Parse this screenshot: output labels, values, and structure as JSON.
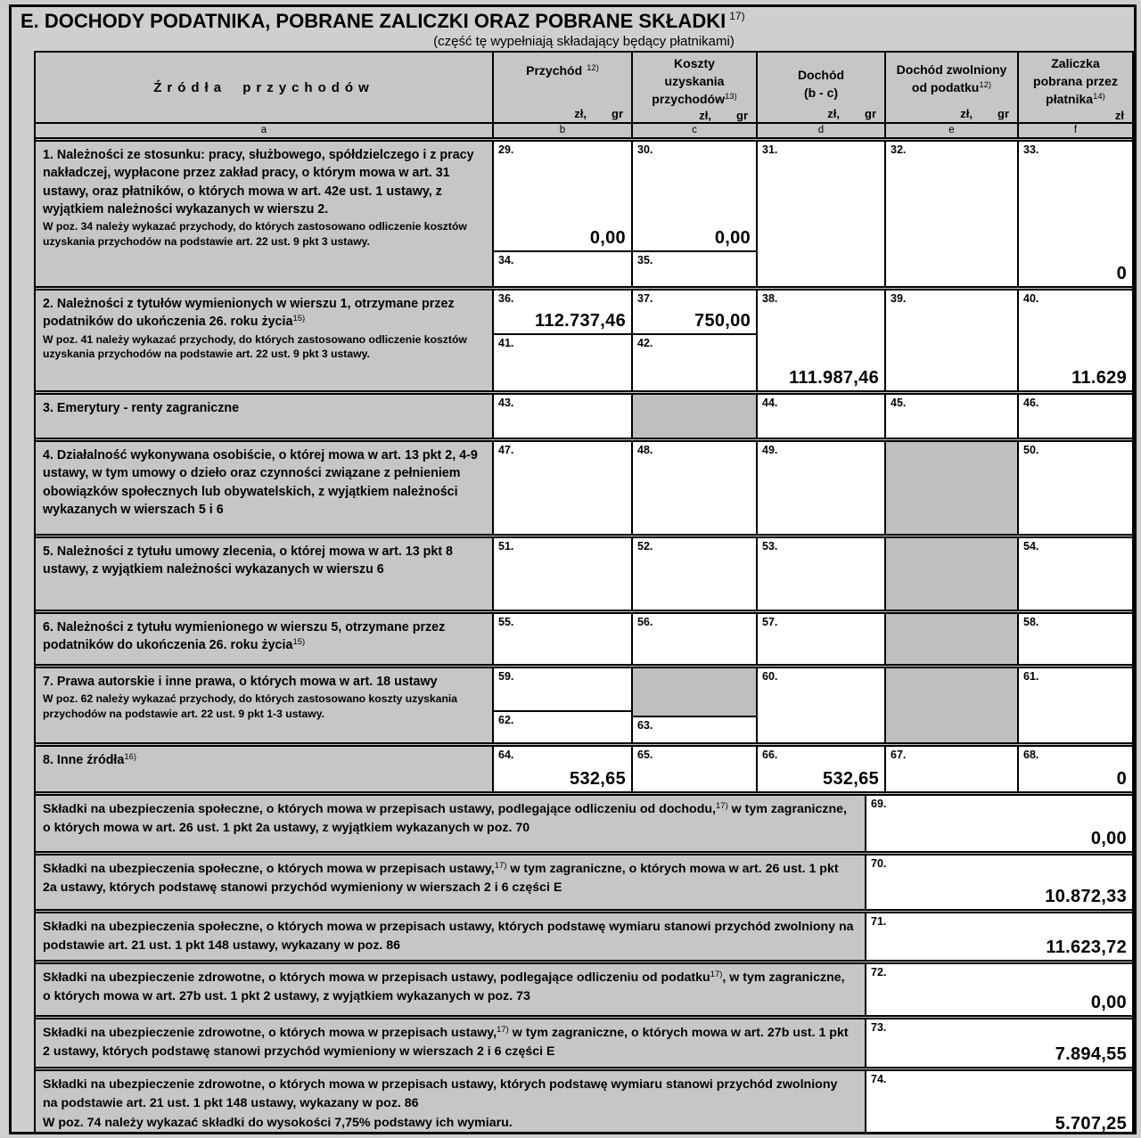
{
  "section": {
    "title": "E. DOCHODY PODATNIKA, POBRANE ZALICZKI ORAZ POBRANE SKŁADKI",
    "title_sup": "17)",
    "subtitle": "(część tę wypełniają składający będący płatnikami)"
  },
  "colors": {
    "page_bg": "#cfcfcf",
    "header_gray": "#c6c6c6",
    "disabled_cell_gray": "#bfbfbf",
    "field_white": "#ffffff",
    "border_black": "#000000"
  },
  "header": {
    "col_a": {
      "label": "Źródła przychodów",
      "letter": "a"
    },
    "col_b": {
      "line1": "Przychód",
      "sup": "12)",
      "unit_zl": "zł,",
      "unit_gr": "gr",
      "letter": "b"
    },
    "col_c": {
      "line1": "Koszty",
      "line2": "uzyskania",
      "line3": "przychodów",
      "sup": "13)",
      "unit_zl": "zł,",
      "unit_gr": "gr",
      "letter": "c"
    },
    "col_d": {
      "line1": "Dochód",
      "line2": "(b - c)",
      "unit_zl": "zł,",
      "unit_gr": "gr",
      "letter": "d"
    },
    "col_e": {
      "line1": "Dochód zwolniony",
      "line2": "od podatku",
      "sup": "12)",
      "unit_zl": "zł,",
      "unit_gr": "gr",
      "letter": "e"
    },
    "col_f": {
      "line1": "Zaliczka",
      "line2": "pobrana przez",
      "line3": "płatnika",
      "sup": "14)",
      "unit_zl": "zł",
      "letter": "f"
    }
  },
  "rows": {
    "r1": {
      "title": "1. Należności ze stosunku: pracy, służbowego, spółdzielczego i z pracy nakładczej, wypłacone przez zakład pracy, o którym mowa w art. 31 ustawy, oraz płatników, o których mowa w art. 42e ust. 1 ustawy, z wyjątkiem należności wykazanych w wierszu 2.",
      "note": "W poz. 34 należy wykazać przychody, do których zastosowano odliczenie kosztów uzyskania przychodów na podstawie art. 22 ust. 9 pkt 3 ustawy.",
      "f29": {
        "no": "29.",
        "value": "0,00"
      },
      "f30": {
        "no": "30.",
        "value": "0,00"
      },
      "f31": {
        "no": "31.",
        "value": ""
      },
      "f32": {
        "no": "32.",
        "value": ""
      },
      "f33": {
        "no": "33.",
        "value": "0"
      },
      "f34": {
        "no": "34.",
        "value": ""
      },
      "f35": {
        "no": "35.",
        "value": ""
      }
    },
    "r2": {
      "title": "2. Należności z tytułów wymienionych w wierszu 1, otrzymane przez podatników do ukończenia 26. roku życia",
      "title_sup": "15)",
      "note": "W poz. 41 należy wykazać przychody, do których zastosowano odliczenie kosztów uzyskania przychodów na podstawie art. 22 ust. 9 pkt 3 ustawy.",
      "f36": {
        "no": "36.",
        "value": "112.737,46"
      },
      "f37": {
        "no": "37.",
        "value": "750,00"
      },
      "f38": {
        "no": "38.",
        "value": "111.987,46"
      },
      "f39": {
        "no": "39.",
        "value": ""
      },
      "f40": {
        "no": "40.",
        "value": "11.629"
      },
      "f41": {
        "no": "41.",
        "value": ""
      },
      "f42": {
        "no": "42.",
        "value": ""
      }
    },
    "r3": {
      "title": "3. Emerytury - renty zagraniczne",
      "f43": {
        "no": "43.",
        "value": ""
      },
      "f44": {
        "no": "44.",
        "value": ""
      },
      "f45": {
        "no": "45.",
        "value": ""
      },
      "f46": {
        "no": "46.",
        "value": ""
      }
    },
    "r4": {
      "title": "4. Działalność wykonywana osobiście, o której mowa w art. 13 pkt 2, 4-9 ustawy, w tym umowy o dzieło oraz czynności związane z pełnieniem obowiązków społecznych lub obywatelskich, z wyjątkiem należności wykazanych w wierszach 5 i 6",
      "f47": {
        "no": "47.",
        "value": ""
      },
      "f48": {
        "no": "48.",
        "value": ""
      },
      "f49": {
        "no": "49.",
        "value": ""
      },
      "f50": {
        "no": "50.",
        "value": ""
      }
    },
    "r5": {
      "title": "5. Należności z tytułu umowy zlecenia, o której mowa w art. 13 pkt 8 ustawy, z wyjątkiem należności wykazanych w wierszu 6",
      "f51": {
        "no": "51.",
        "value": ""
      },
      "f52": {
        "no": "52.",
        "value": ""
      },
      "f53": {
        "no": "53.",
        "value": ""
      },
      "f54": {
        "no": "54.",
        "value": ""
      }
    },
    "r6": {
      "title": "6. Należności z tytułu wymienionego w wierszu 5, otrzymane przez podatników do ukończenia 26. roku życia",
      "title_sup": "15)",
      "f55": {
        "no": "55.",
        "value": ""
      },
      "f56": {
        "no": "56.",
        "value": ""
      },
      "f57": {
        "no": "57.",
        "value": ""
      },
      "f58": {
        "no": "58.",
        "value": ""
      }
    },
    "r7": {
      "title": "7. Prawa autorskie i inne prawa, o których mowa w art. 18 ustawy",
      "note": "W poz. 62 należy wykazać przychody, do których zastosowano koszty uzyskania przychodów na podstawie art. 22 ust. 9 pkt 1-3 ustawy.",
      "f59": {
        "no": "59.",
        "value": ""
      },
      "f60": {
        "no": "60.",
        "value": ""
      },
      "f61": {
        "no": "61.",
        "value": ""
      },
      "f62": {
        "no": "62.",
        "value": ""
      },
      "f63": {
        "no": "63.",
        "value": ""
      }
    },
    "r8": {
      "title": "8. Inne źródła",
      "title_sup": "16)",
      "f64": {
        "no": "64.",
        "value": "532,65"
      },
      "f65": {
        "no": "65.",
        "value": ""
      },
      "f66": {
        "no": "66.",
        "value": "532,65"
      },
      "f67": {
        "no": "67.",
        "value": ""
      },
      "f68": {
        "no": "68.",
        "value": "0"
      }
    }
  },
  "contrib": {
    "c69": {
      "text1": "Składki na ubezpieczenia społeczne, o których mowa w przepisach ustawy, podlegające odliczeniu od dochodu,",
      "sup": "17)",
      "text2": " w tym zagraniczne, o których mowa w art. 26 ust. 1 pkt 2a ustawy, z wyjątkiem wykazanych w poz. 70",
      "no": "69.",
      "value": "0,00"
    },
    "c70": {
      "text1": "Składki na ubezpieczenia społeczne, o których mowa w przepisach ustawy,",
      "sup": "17)",
      "text2": " w tym zagraniczne, o których mowa w art. 26 ust. 1 pkt 2a ustawy, których podstawę stanowi przychód wymieniony w wierszach 2 i 6 części E",
      "no": "70.",
      "value": "10.872,33"
    },
    "c71": {
      "text1": "Składki na ubezpieczenia społeczne, o których mowa w przepisach ustawy, których podstawę wymiaru stanowi przychód zwolniony na podstawie art. 21 ust. 1 pkt 148 ustawy, wykazany w poz. 86",
      "no": "71.",
      "value": "11.623,72"
    },
    "c72": {
      "text1": "Składki na ubezpieczenie zdrowotne, o których mowa w przepisach ustawy, podlegające odliczeniu od podatku",
      "sup": "17)",
      "text2": ", w tym zagraniczne, o których mowa w art. 27b ust. 1 pkt 2 ustawy, z wyjątkiem wykazanych w poz. 73",
      "no": "72.",
      "value": "0,00"
    },
    "c73": {
      "text1": "Składki na ubezpieczenie zdrowotne, o których mowa w przepisach ustawy,",
      "sup": "17)",
      "text2": " w tym zagraniczne, o których mowa w art. 27b ust. 1 pkt 2 ustawy, których podstawę stanowi przychód wymieniony w wierszach 2 i 6 części E",
      "no": "73.",
      "value": "7.894,55"
    },
    "c74": {
      "text1": "Składki na ubezpieczenie zdrowotne, o których mowa w przepisach ustawy, których podstawę wymiaru stanowi przychód zwolniony na podstawie art. 21 ust. 1 pkt 148 ustawy, wykazany w poz. 86",
      "note": "W poz. 74 należy wykazać składki do wysokości 7,75% podstawy ich wymiaru.",
      "no": "74.",
      "value": "5.707,25"
    }
  }
}
